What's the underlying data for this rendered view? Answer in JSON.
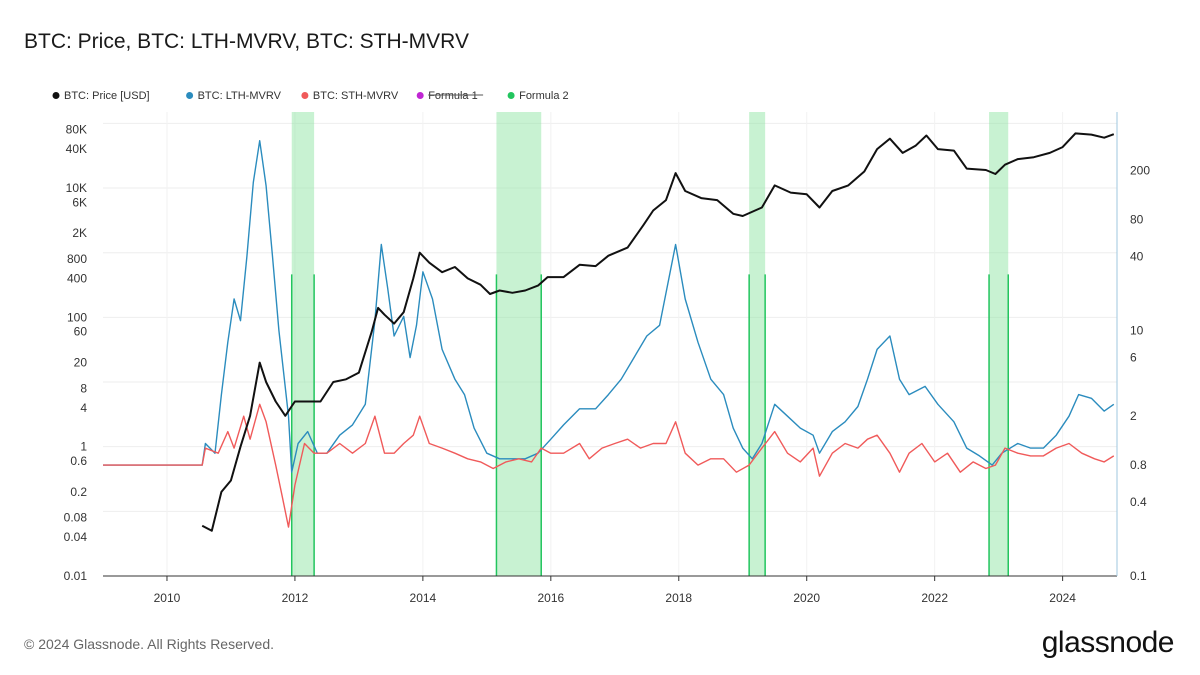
{
  "title": "BTC: Price, BTC: LTH-MVRV, BTC: STH-MVRV",
  "footer": {
    "copyright": "© 2024 Glassnode. All Rights Reserved.",
    "brand": "glassnode"
  },
  "colors": {
    "price": "#111111",
    "lth": "#2b8cbe",
    "sth": "#f05a5a",
    "formula1": "#c026d3",
    "formula2": "#22c55e",
    "band_fill": "#86e29b",
    "band_edge": "#22c55e"
  },
  "chart_data": {
    "type": "line",
    "legend": [
      {
        "label": "BTC: Price [USD]",
        "color": "#111111",
        "struck": false
      },
      {
        "label": "BTC: LTH-MVRV",
        "color": "#2b8cbe",
        "struck": false
      },
      {
        "label": "BTC: STH-MVRV",
        "color": "#f05a5a",
        "struck": false
      },
      {
        "label": "Formula 1",
        "color": "#c026d3",
        "struck": true
      },
      {
        "label": "Formula 2",
        "color": "#22c55e",
        "struck": false
      }
    ],
    "legend_position": "top-left",
    "x_axis": {
      "range": [
        2009.0,
        2024.85
      ],
      "ticks": [
        "2010",
        "2012",
        "2014",
        "2016",
        "2018",
        "2020",
        "2022",
        "2024"
      ]
    },
    "y_left": {
      "scale": "log",
      "range": [
        0.01,
        150000
      ],
      "ticks": [
        "0.01",
        "0.04",
        "0.08",
        "0.2",
        "0.6",
        "1",
        "4",
        "8",
        "20",
        "60",
        "100",
        "400",
        "800",
        "2K",
        "6K",
        "10K",
        "40K",
        "80K"
      ]
    },
    "y_right": {
      "scale": "log",
      "range": [
        0.1,
        600
      ],
      "ticks": [
        "0.1",
        "0.4",
        "0.8",
        "2",
        "6",
        "10",
        "40",
        "80",
        "200"
      ]
    },
    "grid": true,
    "series": [
      {
        "name": "BTC: Price [USD]",
        "axis": "left",
        "points": [
          [
            2010.55,
            0.06
          ],
          [
            2010.7,
            0.05
          ],
          [
            2010.85,
            0.2
          ],
          [
            2011.0,
            0.3
          ],
          [
            2011.15,
            1
          ],
          [
            2011.3,
            3
          ],
          [
            2011.45,
            20
          ],
          [
            2011.55,
            10
          ],
          [
            2011.7,
            5
          ],
          [
            2011.85,
            3
          ],
          [
            2012.0,
            5
          ],
          [
            2012.2,
            5
          ],
          [
            2012.4,
            5
          ],
          [
            2012.6,
            10
          ],
          [
            2012.8,
            11
          ],
          [
            2013.0,
            14
          ],
          [
            2013.2,
            60
          ],
          [
            2013.3,
            140
          ],
          [
            2013.4,
            110
          ],
          [
            2013.55,
            80
          ],
          [
            2013.7,
            120
          ],
          [
            2013.85,
            400
          ],
          [
            2013.95,
            1000
          ],
          [
            2014.1,
            700
          ],
          [
            2014.3,
            500
          ],
          [
            2014.5,
            600
          ],
          [
            2014.7,
            400
          ],
          [
            2014.9,
            320
          ],
          [
            2015.05,
            230
          ],
          [
            2015.2,
            260
          ],
          [
            2015.4,
            240
          ],
          [
            2015.6,
            260
          ],
          [
            2015.8,
            310
          ],
          [
            2015.95,
            420
          ],
          [
            2016.2,
            420
          ],
          [
            2016.45,
            650
          ],
          [
            2016.7,
            620
          ],
          [
            2016.9,
            900
          ],
          [
            2017.2,
            1200
          ],
          [
            2017.45,
            2700
          ],
          [
            2017.6,
            4500
          ],
          [
            2017.8,
            6500
          ],
          [
            2017.95,
            17000
          ],
          [
            2018.1,
            9000
          ],
          [
            2018.35,
            7000
          ],
          [
            2018.6,
            6500
          ],
          [
            2018.85,
            4000
          ],
          [
            2019.0,
            3700
          ],
          [
            2019.3,
            5000
          ],
          [
            2019.5,
            11000
          ],
          [
            2019.75,
            8500
          ],
          [
            2020.0,
            8000
          ],
          [
            2020.2,
            5000
          ],
          [
            2020.4,
            9000
          ],
          [
            2020.65,
            11000
          ],
          [
            2020.9,
            18000
          ],
          [
            2021.1,
            40000
          ],
          [
            2021.3,
            58000
          ],
          [
            2021.5,
            35000
          ],
          [
            2021.7,
            45000
          ],
          [
            2021.87,
            65000
          ],
          [
            2022.05,
            40000
          ],
          [
            2022.3,
            38000
          ],
          [
            2022.5,
            20000
          ],
          [
            2022.8,
            19000
          ],
          [
            2022.95,
            16500
          ],
          [
            2023.1,
            23000
          ],
          [
            2023.3,
            28000
          ],
          [
            2023.55,
            30000
          ],
          [
            2023.8,
            35000
          ],
          [
            2024.0,
            43000
          ],
          [
            2024.2,
            70000
          ],
          [
            2024.45,
            67000
          ],
          [
            2024.65,
            60000
          ],
          [
            2024.8,
            68000
          ]
        ]
      },
      {
        "name": "BTC: LTH-MVRV",
        "axis": "right",
        "points": [
          [
            2009.0,
            0.8
          ],
          [
            2010.55,
            0.8
          ],
          [
            2010.6,
            1.2
          ],
          [
            2010.75,
            1
          ],
          [
            2010.85,
            3
          ],
          [
            2010.95,
            8
          ],
          [
            2011.05,
            18
          ],
          [
            2011.15,
            12
          ],
          [
            2011.25,
            40
          ],
          [
            2011.35,
            160
          ],
          [
            2011.45,
            350
          ],
          [
            2011.55,
            150
          ],
          [
            2011.65,
            40
          ],
          [
            2011.75,
            10
          ],
          [
            2011.9,
            2
          ],
          [
            2011.95,
            0.7
          ],
          [
            2012.05,
            1.2
          ],
          [
            2012.2,
            1.5
          ],
          [
            2012.35,
            1
          ],
          [
            2012.5,
            1
          ],
          [
            2012.7,
            1.4
          ],
          [
            2012.9,
            1.7
          ],
          [
            2013.1,
            2.5
          ],
          [
            2013.25,
            12
          ],
          [
            2013.35,
            50
          ],
          [
            2013.45,
            22
          ],
          [
            2013.55,
            9
          ],
          [
            2013.7,
            13
          ],
          [
            2013.8,
            6
          ],
          [
            2013.9,
            11
          ],
          [
            2014.0,
            30
          ],
          [
            2014.15,
            18
          ],
          [
            2014.3,
            7
          ],
          [
            2014.5,
            4
          ],
          [
            2014.65,
            3
          ],
          [
            2014.8,
            1.6
          ],
          [
            2015.0,
            1
          ],
          [
            2015.2,
            0.9
          ],
          [
            2015.4,
            0.9
          ],
          [
            2015.6,
            0.9
          ],
          [
            2015.8,
            1
          ],
          [
            2016.0,
            1.3
          ],
          [
            2016.2,
            1.7
          ],
          [
            2016.45,
            2.3
          ],
          [
            2016.7,
            2.3
          ],
          [
            2016.9,
            3
          ],
          [
            2017.1,
            4
          ],
          [
            2017.3,
            6
          ],
          [
            2017.5,
            9
          ],
          [
            2017.7,
            11
          ],
          [
            2017.95,
            50
          ],
          [
            2018.1,
            18
          ],
          [
            2018.3,
            8
          ],
          [
            2018.5,
            4
          ],
          [
            2018.7,
            3
          ],
          [
            2018.85,
            1.6
          ],
          [
            2019.0,
            1.1
          ],
          [
            2019.15,
            0.9
          ],
          [
            2019.3,
            1.2
          ],
          [
            2019.5,
            2.5
          ],
          [
            2019.7,
            2
          ],
          [
            2019.9,
            1.6
          ],
          [
            2020.1,
            1.4
          ],
          [
            2020.2,
            1
          ],
          [
            2020.4,
            1.5
          ],
          [
            2020.6,
            1.8
          ],
          [
            2020.8,
            2.4
          ],
          [
            2020.95,
            4
          ],
          [
            2021.1,
            7
          ],
          [
            2021.3,
            9
          ],
          [
            2021.45,
            4
          ],
          [
            2021.6,
            3
          ],
          [
            2021.85,
            3.5
          ],
          [
            2022.05,
            2.5
          ],
          [
            2022.3,
            1.8
          ],
          [
            2022.5,
            1.1
          ],
          [
            2022.7,
            0.95
          ],
          [
            2022.9,
            0.8
          ],
          [
            2023.05,
            1
          ],
          [
            2023.3,
            1.2
          ],
          [
            2023.5,
            1.1
          ],
          [
            2023.7,
            1.1
          ],
          [
            2023.9,
            1.4
          ],
          [
            2024.1,
            2
          ],
          [
            2024.25,
            3
          ],
          [
            2024.45,
            2.8
          ],
          [
            2024.65,
            2.2
          ],
          [
            2024.8,
            2.5
          ]
        ]
      },
      {
        "name": "BTC: STH-MVRV",
        "axis": "right",
        "points": [
          [
            2009.0,
            0.8
          ],
          [
            2010.55,
            0.8
          ],
          [
            2010.6,
            1.1
          ],
          [
            2010.8,
            1
          ],
          [
            2010.95,
            1.5
          ],
          [
            2011.05,
            1.1
          ],
          [
            2011.2,
            2
          ],
          [
            2011.3,
            1.3
          ],
          [
            2011.45,
            2.5
          ],
          [
            2011.55,
            1.8
          ],
          [
            2011.7,
            0.8
          ],
          [
            2011.8,
            0.45
          ],
          [
            2011.9,
            0.25
          ],
          [
            2012.0,
            0.55
          ],
          [
            2012.15,
            1.2
          ],
          [
            2012.3,
            1
          ],
          [
            2012.5,
            1
          ],
          [
            2012.7,
            1.2
          ],
          [
            2012.9,
            1
          ],
          [
            2013.1,
            1.2
          ],
          [
            2013.25,
            2
          ],
          [
            2013.4,
            1
          ],
          [
            2013.55,
            1
          ],
          [
            2013.7,
            1.2
          ],
          [
            2013.85,
            1.4
          ],
          [
            2013.95,
            2
          ],
          [
            2014.1,
            1.2
          ],
          [
            2014.3,
            1.1
          ],
          [
            2014.5,
            1
          ],
          [
            2014.7,
            0.9
          ],
          [
            2014.9,
            0.85
          ],
          [
            2015.1,
            0.75
          ],
          [
            2015.3,
            0.85
          ],
          [
            2015.5,
            0.9
          ],
          [
            2015.7,
            0.85
          ],
          [
            2015.85,
            1.1
          ],
          [
            2016.0,
            1
          ],
          [
            2016.2,
            1
          ],
          [
            2016.45,
            1.2
          ],
          [
            2016.6,
            0.9
          ],
          [
            2016.8,
            1.1
          ],
          [
            2017.0,
            1.2
          ],
          [
            2017.2,
            1.3
          ],
          [
            2017.4,
            1.1
          ],
          [
            2017.6,
            1.2
          ],
          [
            2017.8,
            1.2
          ],
          [
            2017.95,
            1.8
          ],
          [
            2018.1,
            1
          ],
          [
            2018.3,
            0.8
          ],
          [
            2018.5,
            0.9
          ],
          [
            2018.7,
            0.9
          ],
          [
            2018.9,
            0.7
          ],
          [
            2019.1,
            0.8
          ],
          [
            2019.3,
            1.1
          ],
          [
            2019.5,
            1.5
          ],
          [
            2019.7,
            1
          ],
          [
            2019.9,
            0.85
          ],
          [
            2020.1,
            1.1
          ],
          [
            2020.2,
            0.65
          ],
          [
            2020.4,
            1
          ],
          [
            2020.6,
            1.2
          ],
          [
            2020.8,
            1.1
          ],
          [
            2020.95,
            1.3
          ],
          [
            2021.1,
            1.4
          ],
          [
            2021.3,
            1
          ],
          [
            2021.45,
            0.7
          ],
          [
            2021.6,
            1
          ],
          [
            2021.8,
            1.2
          ],
          [
            2022.0,
            0.85
          ],
          [
            2022.2,
            1
          ],
          [
            2022.4,
            0.7
          ],
          [
            2022.6,
            0.85
          ],
          [
            2022.8,
            0.75
          ],
          [
            2022.95,
            0.8
          ],
          [
            2023.1,
            1.1
          ],
          [
            2023.3,
            1
          ],
          [
            2023.5,
            0.95
          ],
          [
            2023.7,
            0.95
          ],
          [
            2023.9,
            1.1
          ],
          [
            2024.1,
            1.2
          ],
          [
            2024.3,
            1
          ],
          [
            2024.5,
            0.9
          ],
          [
            2024.65,
            0.85
          ],
          [
            2024.8,
            0.95
          ]
        ]
      }
    ],
    "highlight_bands": [
      {
        "start": 2011.95,
        "end": 2012.3
      },
      {
        "start": 2015.15,
        "end": 2015.85
      },
      {
        "start": 2019.1,
        "end": 2019.35
      },
      {
        "start": 2022.85,
        "end": 2023.15
      }
    ]
  }
}
